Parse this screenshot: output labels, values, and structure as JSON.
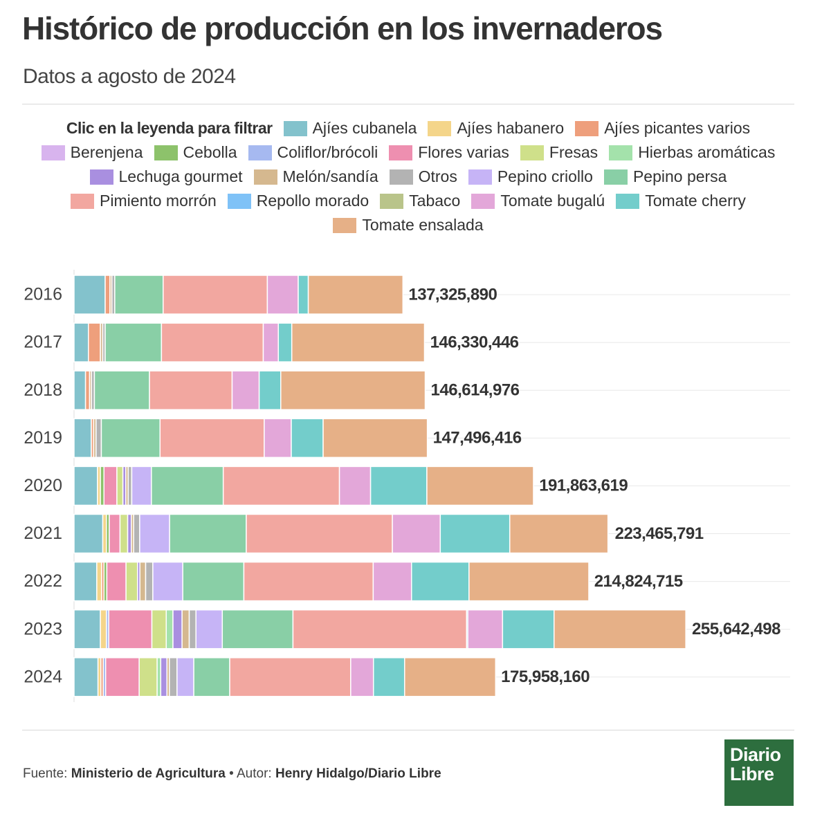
{
  "chart_data": {
    "type": "stacked-bar-horizontal",
    "title": "Histórico de producción en los invernaderos",
    "subtitle": "Datos a agosto de 2024",
    "legend_note": "Clic en la leyenda para filtrar",
    "categories": [
      "2016",
      "2017",
      "2018",
      "2019",
      "2020",
      "2021",
      "2022",
      "2023",
      "2024"
    ],
    "xlim": [
      0,
      255642498
    ],
    "totals": [
      137325890,
      146330446,
      146614976,
      147496416,
      191863619,
      223465791,
      214824715,
      255642498,
      175958160
    ],
    "total_labels": [
      "137,325,890",
      "146,330,446",
      "146,614,976",
      "147,496,416",
      "191,863,619",
      "223,465,791",
      "214,824,715",
      "255,642,498",
      "175,958,160"
    ],
    "series": [
      {
        "name": "Ajíes cubanela",
        "color": "#83c2cc",
        "values": [
          13000000,
          6000000,
          4800000,
          7200000,
          9800000,
          12000000,
          9500000,
          11000000,
          10000000
        ]
      },
      {
        "name": "Ajíes habanero",
        "color": "#f4d58a",
        "values": [
          0,
          0,
          0,
          0,
          1200000,
          1500000,
          2000000,
          2500000,
          1200000
        ]
      },
      {
        "name": "Ajíes picantes varios",
        "color": "#ee9f7c",
        "values": [
          2000000,
          5000000,
          1700000,
          1000000,
          0,
          0,
          1000000,
          0,
          1000000
        ]
      },
      {
        "name": "Berenjena",
        "color": "#d8b4ee",
        "values": [
          0,
          0,
          0,
          0,
          0,
          0,
          0,
          0,
          0
        ]
      },
      {
        "name": "Cebolla",
        "color": "#8dc26b",
        "values": [
          0,
          0,
          0,
          0,
          1500000,
          1200000,
          1200000,
          0,
          0
        ]
      },
      {
        "name": "Coliflor/brócoli",
        "color": "#a6b9f0",
        "values": [
          0,
          0,
          0,
          0,
          0,
          0,
          0,
          1000000,
          1000000
        ]
      },
      {
        "name": "Flores varias",
        "color": "#ee8fb0",
        "values": [
          0,
          0,
          0,
          0,
          5400000,
          4500000,
          8000000,
          18000000,
          14000000
        ]
      },
      {
        "name": "Fresas",
        "color": "#cfe08a",
        "values": [
          0,
          0,
          0,
          0,
          2500000,
          3200000,
          4800000,
          6000000,
          7500000
        ]
      },
      {
        "name": "Hierbas aromáticas",
        "color": "#a4e2ab",
        "values": [
          0,
          0,
          0,
          0,
          0,
          0,
          0,
          2800000,
          1500000
        ]
      },
      {
        "name": "Lechuga gourmet",
        "color": "#a98fe0",
        "values": [
          0,
          0,
          0,
          0,
          1200000,
          1500000,
          1000000,
          3800000,
          2600000
        ]
      },
      {
        "name": "Melón/sandía",
        "color": "#d5b88f",
        "values": [
          800000,
          1000000,
          800000,
          1000000,
          1000000,
          1000000,
          2400000,
          3000000,
          1000000
        ]
      },
      {
        "name": "Otros",
        "color": "#b3b3b3",
        "values": [
          1200000,
          1000000,
          1200000,
          2200000,
          1500000,
          2500000,
          3000000,
          2800000,
          3200000
        ]
      },
      {
        "name": "Pepino criollo",
        "color": "#c6b4f6",
        "values": [
          0,
          0,
          0,
          0,
          8200000,
          12500000,
          12500000,
          11000000,
          7000000
        ]
      },
      {
        "name": "Pepino persa",
        "color": "#89cfa6",
        "values": [
          20200000,
          23500000,
          23000000,
          24500000,
          30000000,
          32000000,
          25500000,
          29500000,
          15000000
        ]
      },
      {
        "name": "Pimiento morrón",
        "color": "#f2a7a0",
        "values": [
          43500000,
          42500000,
          34500000,
          43500000,
          48500000,
          61000000,
          54000000,
          72500000,
          50500000
        ]
      },
      {
        "name": "Repollo morado",
        "color": "#7fc2f7",
        "values": [
          0,
          0,
          0,
          0,
          0,
          0,
          0,
          500000,
          0
        ]
      },
      {
        "name": "Tabaco",
        "color": "#b9c48a",
        "values": [
          0,
          0,
          0,
          0,
          0,
          0,
          0,
          0,
          0
        ]
      },
      {
        "name": "Tomate bugalú",
        "color": "#e3a7d9",
        "values": [
          12900000,
          6300000,
          11300000,
          11300000,
          13000000,
          20000000,
          16000000,
          14500000,
          9500000
        ]
      },
      {
        "name": "Tomate cherry",
        "color": "#73cdcb",
        "values": [
          4200000,
          5600000,
          9000000,
          13300000,
          23500000,
          29000000,
          24000000,
          21500000,
          13000000
        ]
      },
      {
        "name": "Tomate ensalada",
        "color": "#e6b087",
        "values": [
          39500000,
          55400000,
          60300000,
          43500000,
          44500000,
          41000000,
          50000000,
          55000000,
          38000000
        ]
      }
    ]
  },
  "footer": {
    "source_label": "Fuente:",
    "source": "Ministerio de Agricultura",
    "separator": "•",
    "author_label": "Autor:",
    "author": "Henry Hidalgo/Diario Libre"
  },
  "logo": {
    "line1": "Diario",
    "line2": "Libre"
  }
}
